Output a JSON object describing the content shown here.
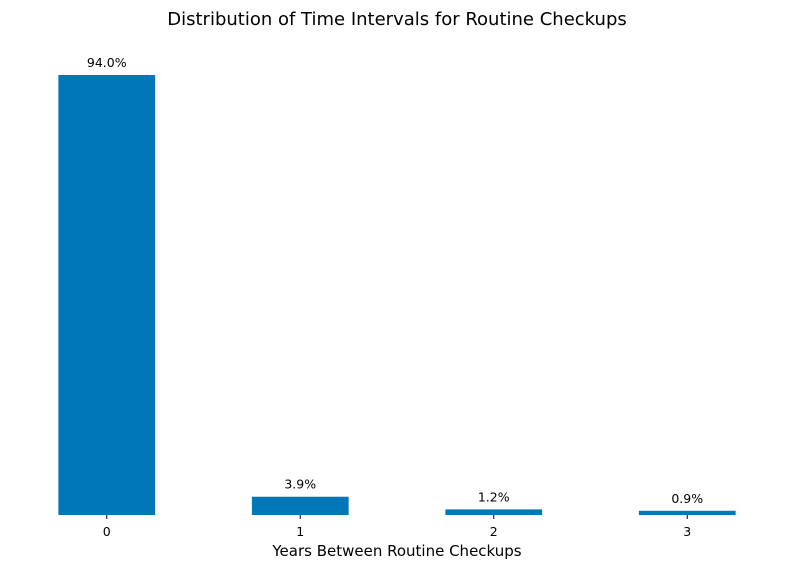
{
  "chart_data": {
    "type": "bar",
    "title": "Distribution of Time Intervals for Routine Checkups",
    "xlabel": "Years Between Routine Checkups",
    "ylabel": "",
    "categories": [
      "0",
      "1",
      "2",
      "3"
    ],
    "values": [
      94.0,
      3.9,
      1.2,
      0.9
    ],
    "data_labels": [
      "94.0%",
      "3.9%",
      "1.2%",
      "0.9%"
    ],
    "ylim": [
      0,
      94.0
    ],
    "grid": false,
    "legend": "none",
    "bar_color": "#0077b6"
  }
}
